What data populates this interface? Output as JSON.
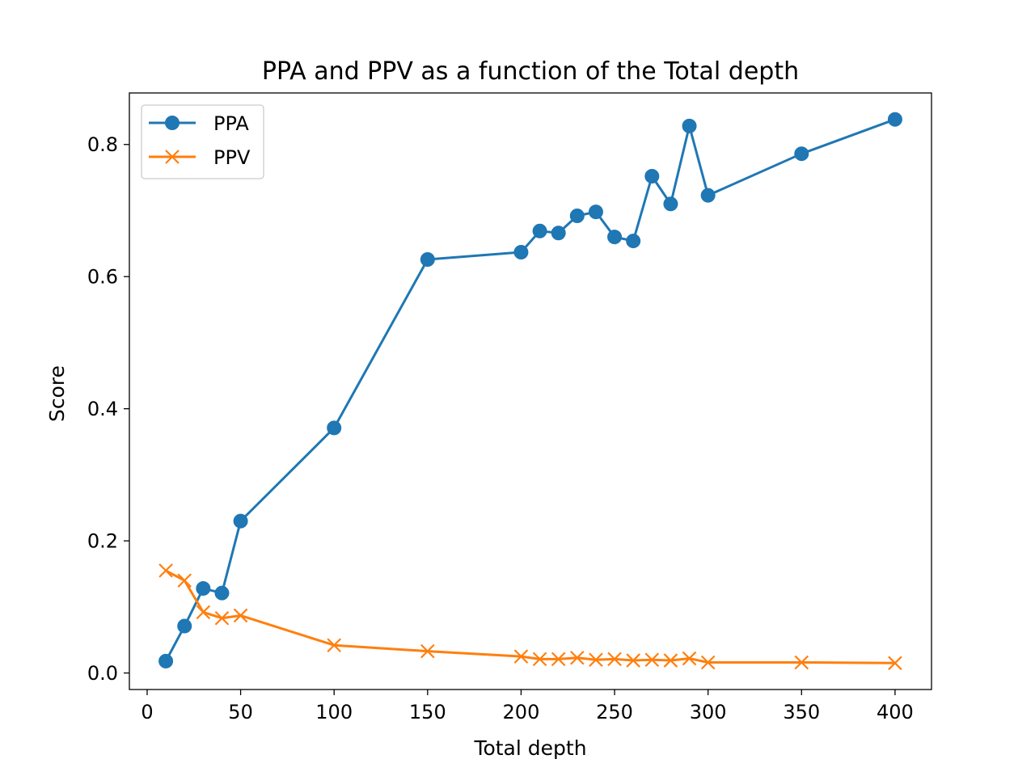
{
  "chart_data": {
    "type": "line",
    "title": "PPA and PPV as a function of the Total depth",
    "xlabel": "Total depth",
    "ylabel": "Score",
    "xlim": [
      -9.5,
      419.5
    ],
    "ylim": [
      -0.025,
      0.878
    ],
    "xticks": [
      0,
      50,
      100,
      150,
      200,
      250,
      300,
      350,
      400
    ],
    "yticks": [
      0.0,
      0.2,
      0.4,
      0.6,
      0.8
    ],
    "ytick_labels": [
      "0.0",
      "0.2",
      "0.4",
      "0.6",
      "0.8"
    ],
    "grid": false,
    "legend_position": "upper left",
    "x": [
      10,
      20,
      30,
      40,
      50,
      100,
      150,
      200,
      210,
      220,
      230,
      240,
      250,
      260,
      270,
      280,
      290,
      300,
      350,
      400
    ],
    "series": [
      {
        "name": "PPA",
        "color": "#1f77b4",
        "marker": "circle",
        "values": [
          0.018,
          0.071,
          0.128,
          0.121,
          0.23,
          0.371,
          0.626,
          0.637,
          0.669,
          0.666,
          0.692,
          0.698,
          0.66,
          0.654,
          0.752,
          0.71,
          0.828,
          0.723,
          0.786,
          0.838
        ]
      },
      {
        "name": "PPV",
        "color": "#ff7f0e",
        "marker": "x",
        "values": [
          0.155,
          0.14,
          0.092,
          0.083,
          0.087,
          0.042,
          0.033,
          0.025,
          0.021,
          0.021,
          0.023,
          0.02,
          0.021,
          0.019,
          0.02,
          0.019,
          0.022,
          0.016,
          0.016,
          0.015
        ]
      }
    ]
  }
}
